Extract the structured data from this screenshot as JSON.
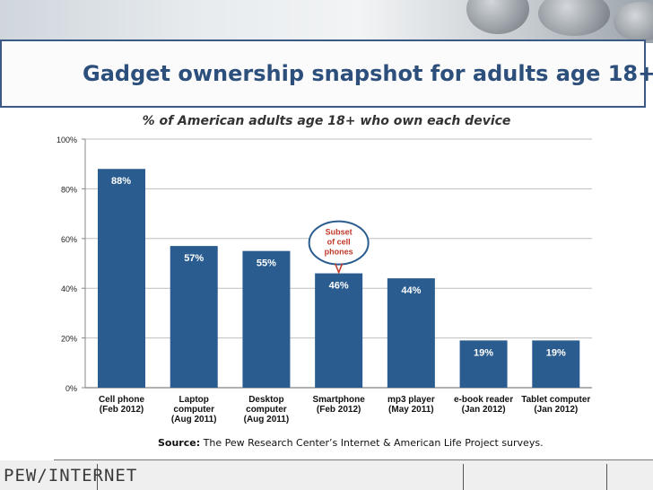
{
  "header": {
    "title": "Gadget ownership snapshot for adults age 18+"
  },
  "chart_data": {
    "type": "bar",
    "subtitle": "% of American adults age 18+ who own each device",
    "categories": [
      [
        "Cell phone",
        "(Feb 2012)"
      ],
      [
        "Laptop",
        "computer",
        "(Aug 2011)"
      ],
      [
        "Desktop",
        "computer",
        "(Aug 2011)"
      ],
      [
        "Smartphone",
        "(Feb 2012)"
      ],
      [
        "mp3 player",
        "(May 2011)"
      ],
      [
        "e-book reader",
        "(Jan 2012)"
      ],
      [
        "Tablet computer",
        "(Jan 2012)"
      ]
    ],
    "values": [
      88,
      57,
      55,
      46,
      44,
      19,
      19
    ],
    "value_labels": [
      "88%",
      "57%",
      "55%",
      "46%",
      "44%",
      "19%",
      "19%"
    ],
    "ylim": [
      0,
      100
    ],
    "yticks": [
      0,
      20,
      40,
      60,
      80,
      100
    ],
    "ytick_labels": [
      "0%",
      "20%",
      "40%",
      "60%",
      "80%",
      "100%"
    ],
    "grid": true,
    "bar_color": "#2a5c8f",
    "annotation": {
      "lines": [
        "Subset",
        "of cell",
        "phones"
      ],
      "target_index": 3,
      "color": "#c0392b"
    }
  },
  "footer": {
    "source_label": "Source:",
    "source_text": " The Pew Research Center’s Internet & American Life Project surveys.",
    "logo_left": "PEW",
    "logo_slash": "/",
    "logo_right": "INTERNET"
  }
}
